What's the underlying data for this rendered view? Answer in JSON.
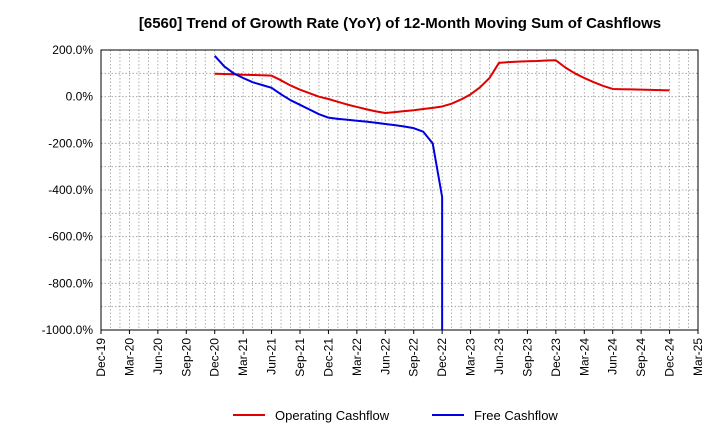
{
  "chart_data": {
    "type": "line",
    "title": "[6560]  Trend of Growth Rate (YoY) of 12-Month Moving Sum of Cashflows",
    "xlabel": "",
    "ylabel": "",
    "x_ticks": [
      "Dec-19",
      "Mar-20",
      "Jun-20",
      "Sep-20",
      "Dec-20",
      "Mar-21",
      "Jun-21",
      "Sep-21",
      "Dec-21",
      "Mar-22",
      "Jun-22",
      "Sep-22",
      "Dec-22",
      "Mar-23",
      "Jun-23",
      "Sep-23",
      "Dec-23",
      "Mar-24",
      "Jun-24",
      "Sep-24",
      "Dec-24",
      "Mar-25"
    ],
    "y_ticks": [
      "200.0%",
      "0.0%",
      "-200.0%",
      "-400.0%",
      "-600.0%",
      "-800.0%",
      "-1000.0%"
    ],
    "ylim": [
      -1000,
      200
    ],
    "grid": true,
    "legend_position": "bottom",
    "series": [
      {
        "name": "Operating Cashflow",
        "color": "#e00000",
        "points": [
          {
            "x": "Dec-20",
            "y": 98
          },
          {
            "x": "Jan-21",
            "y": 97
          },
          {
            "x": "Feb-21",
            "y": 96
          },
          {
            "x": "Mar-21",
            "y": 94
          },
          {
            "x": "Apr-21",
            "y": 93
          },
          {
            "x": "May-21",
            "y": 92
          },
          {
            "x": "Jun-21",
            "y": 90
          },
          {
            "x": "Jul-21",
            "y": 70
          },
          {
            "x": "Aug-21",
            "y": 48
          },
          {
            "x": "Sep-21",
            "y": 30
          },
          {
            "x": "Oct-21",
            "y": 15
          },
          {
            "x": "Nov-21",
            "y": 0
          },
          {
            "x": "Dec-21",
            "y": -10
          },
          {
            "x": "Jan-22",
            "y": -22
          },
          {
            "x": "Feb-22",
            "y": -34
          },
          {
            "x": "Mar-22",
            "y": -44
          },
          {
            "x": "Apr-22",
            "y": -54
          },
          {
            "x": "May-22",
            "y": -63
          },
          {
            "x": "Jun-22",
            "y": -70
          },
          {
            "x": "Jul-22",
            "y": -66
          },
          {
            "x": "Aug-22",
            "y": -62
          },
          {
            "x": "Sep-22",
            "y": -58
          },
          {
            "x": "Oct-22",
            "y": -53
          },
          {
            "x": "Nov-22",
            "y": -48
          },
          {
            "x": "Dec-22",
            "y": -42
          },
          {
            "x": "Jan-23",
            "y": -30
          },
          {
            "x": "Feb-23",
            "y": -12
          },
          {
            "x": "Mar-23",
            "y": 10
          },
          {
            "x": "Apr-23",
            "y": 40
          },
          {
            "x": "May-23",
            "y": 80
          },
          {
            "x": "Jun-23",
            "y": 145
          },
          {
            "x": "Jul-23",
            "y": 148
          },
          {
            "x": "Aug-23",
            "y": 150
          },
          {
            "x": "Sep-23",
            "y": 152
          },
          {
            "x": "Oct-23",
            "y": 153
          },
          {
            "x": "Nov-23",
            "y": 155
          },
          {
            "x": "Dec-23",
            "y": 156
          },
          {
            "x": "Jan-24",
            "y": 125
          },
          {
            "x": "Feb-24",
            "y": 100
          },
          {
            "x": "Mar-24",
            "y": 80
          },
          {
            "x": "Apr-24",
            "y": 62
          },
          {
            "x": "May-24",
            "y": 46
          },
          {
            "x": "Jun-24",
            "y": 33
          },
          {
            "x": "Jul-24",
            "y": 32
          },
          {
            "x": "Aug-24",
            "y": 31
          },
          {
            "x": "Sep-24",
            "y": 30
          },
          {
            "x": "Oct-24",
            "y": 29
          },
          {
            "x": "Nov-24",
            "y": 28
          },
          {
            "x": "Dec-24",
            "y": 27
          }
        ]
      },
      {
        "name": "Free Cashflow",
        "color": "#0000e0",
        "points": [
          {
            "x": "Dec-20",
            "y": 175
          },
          {
            "x": "Jan-21",
            "y": 130
          },
          {
            "x": "Feb-21",
            "y": 100
          },
          {
            "x": "Mar-21",
            "y": 80
          },
          {
            "x": "Apr-21",
            "y": 62
          },
          {
            "x": "May-21",
            "y": 50
          },
          {
            "x": "Jun-21",
            "y": 38
          },
          {
            "x": "Jul-21",
            "y": 10
          },
          {
            "x": "Aug-21",
            "y": -15
          },
          {
            "x": "Sep-21",
            "y": -35
          },
          {
            "x": "Oct-21",
            "y": -55
          },
          {
            "x": "Nov-21",
            "y": -75
          },
          {
            "x": "Dec-21",
            "y": -90
          },
          {
            "x": "Jan-22",
            "y": -95
          },
          {
            "x": "Feb-22",
            "y": -99
          },
          {
            "x": "Mar-22",
            "y": -103
          },
          {
            "x": "Apr-22",
            "y": -107
          },
          {
            "x": "May-22",
            "y": -112
          },
          {
            "x": "Jun-22",
            "y": -117
          },
          {
            "x": "Jul-22",
            "y": -122
          },
          {
            "x": "Aug-22",
            "y": -128
          },
          {
            "x": "Sep-22",
            "y": -135
          },
          {
            "x": "Oct-22",
            "y": -150
          },
          {
            "x": "Nov-22",
            "y": -200
          },
          {
            "x": "Dec-22",
            "y": -430
          },
          {
            "x": "Dec-22",
            "y": -1000
          }
        ]
      }
    ]
  }
}
